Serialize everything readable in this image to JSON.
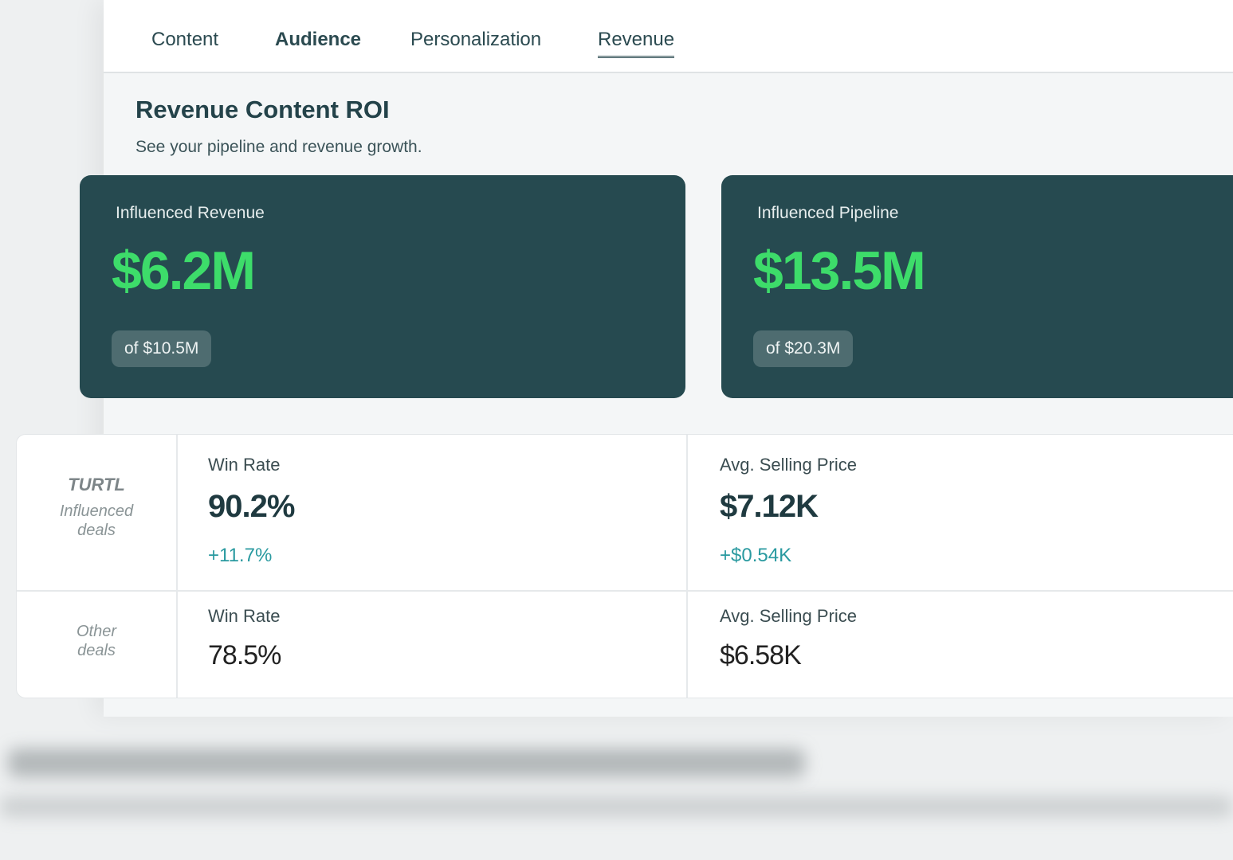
{
  "tabs": [
    {
      "label": "Content"
    },
    {
      "label": "Audience"
    },
    {
      "label": "Personalization"
    },
    {
      "label": "Revenue"
    }
  ],
  "active_tab": "Revenue",
  "section": {
    "title": "Revenue Content ROI",
    "subtitle": "See your pipeline and revenue growth."
  },
  "cards": [
    {
      "label": "Influenced Revenue",
      "value": "$6.2M",
      "total": "of $10.5M"
    },
    {
      "label": "Influenced Pipeline",
      "value": "$13.5M",
      "total": "of $20.3M"
    }
  ],
  "comparison": {
    "turtl": {
      "logo": "TURTL",
      "label": "Influenced deals",
      "win_rate_label": "Win Rate",
      "win_rate": "90.2%",
      "win_rate_delta": "+11.7%",
      "asp_label": "Avg. Selling Price",
      "asp": "$7.12K",
      "asp_delta": "+$0.54K"
    },
    "other": {
      "label": "Other deals",
      "win_rate_label": "Win Rate",
      "win_rate": "78.5%",
      "asp_label": "Avg. Selling Price",
      "asp": "$6.58K"
    }
  },
  "colors": {
    "card_bg": "#264a50",
    "accent_green": "#3ddc6a",
    "delta_teal": "#2a9aa0"
  }
}
